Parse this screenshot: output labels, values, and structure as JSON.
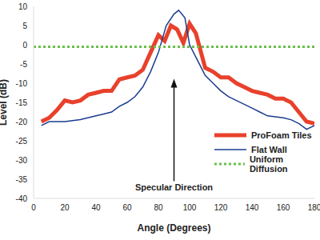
{
  "chart_data": {
    "type": "line",
    "x_label": "Angle (Degrees)",
    "y_label": "Level (dB)",
    "xlim": [
      0,
      180
    ],
    "xticks": [
      0,
      20,
      40,
      60,
      80,
      100,
      120,
      140,
      160,
      180
    ],
    "ylim": [
      -40,
      10
    ],
    "yticks": [
      -40,
      -35,
      -30,
      -25,
      -20,
      -15,
      -10,
      -5,
      0,
      5,
      10
    ],
    "grid": false,
    "legend": "lower right",
    "series": [
      {
        "name": "ProFoam Tiles",
        "color": "#e8412c",
        "line_style": "solid",
        "x": [
          5,
          10,
          15,
          20,
          25,
          30,
          35,
          40,
          45,
          50,
          55,
          60,
          65,
          70,
          75,
          80,
          84,
          88,
          92,
          96,
          100,
          104,
          110,
          115,
          120,
          125,
          130,
          135,
          140,
          145,
          150,
          155,
          160,
          165,
          170,
          175,
          180
        ],
        "values": [
          -20,
          -19,
          -17,
          -14.5,
          -15,
          -14.5,
          -13,
          -12.5,
          -12,
          -12,
          -9,
          -8.5,
          -8,
          -6.5,
          -2,
          2.5,
          1,
          5,
          4,
          0.5,
          5.5,
          3,
          -6,
          -7,
          -8.5,
          -8.5,
          -10,
          -11,
          -12,
          -12.5,
          -13,
          -14,
          -14,
          -15,
          -17.5,
          -20,
          -20.5
        ]
      },
      {
        "name": "Flat Wall",
        "color": "#1a3d8f",
        "line_style": "solid",
        "x": [
          5,
          10,
          20,
          30,
          40,
          45,
          50,
          55,
          60,
          65,
          70,
          75,
          80,
          85,
          90,
          93,
          97,
          100,
          105,
          110,
          115,
          120,
          125,
          130,
          140,
          145,
          150,
          160,
          165,
          170,
          175,
          180
        ],
        "values": [
          -21,
          -20,
          -20,
          -19.5,
          -18.5,
          -18,
          -17.5,
          -16,
          -15,
          -13.5,
          -11,
          -7,
          -2,
          5,
          8,
          9,
          7,
          0,
          -4,
          -8,
          -10,
          -12,
          -13.5,
          -14.5,
          -16.5,
          -17.5,
          -18.5,
          -19,
          -19.5,
          -20.5,
          -22,
          -21
        ]
      },
      {
        "name": "Uniform Diffusion",
        "color": "#6abf4b",
        "line_style": "dotted",
        "x": [
          0,
          180
        ],
        "values": [
          -0.5,
          -0.5
        ]
      }
    ],
    "annotations": [
      {
        "text": "Specular Direction",
        "x": 90,
        "y": -38
      }
    ]
  }
}
